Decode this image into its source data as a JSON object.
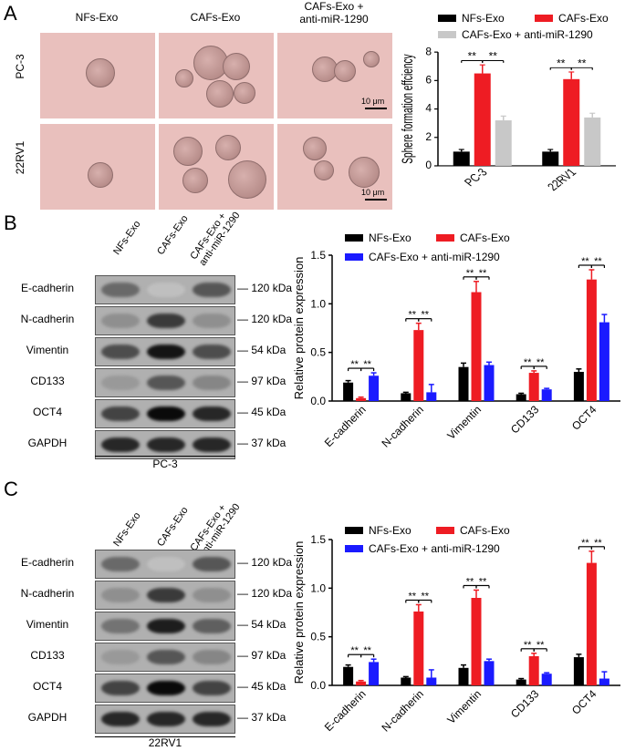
{
  "panels": {
    "A": "A",
    "B": "B",
    "C": "C"
  },
  "panelA": {
    "columns": [
      "NFs-Exo",
      "CAFs-Exo",
      "CAFs-Exo +\nanti-miR-1290"
    ],
    "rows": [
      "PC-3",
      "22RV1"
    ],
    "scale_label": "10 μm"
  },
  "panelB": {
    "columns": [
      "NFs-Exo",
      "CAFs-Exo",
      "CAFs-Exo +\nanti-miR-1290"
    ],
    "proteins": [
      "E-cadherin",
      "N-cadherin",
      "Vimentin",
      "CD133",
      "OCT4",
      "GAPDH"
    ],
    "sizes": [
      "120 kDa",
      "120 kDa",
      "54 kDa",
      "97 kDa",
      "45 kDa",
      "37 kDa"
    ],
    "cell_line": "PC-3"
  },
  "panelC": {
    "columns": [
      "NFs-Exo",
      "CAFs-Exo",
      "CAFs-Exo +\nanti-miR-1290"
    ],
    "proteins": [
      "E-cadherin",
      "N-cadherin",
      "Vimentin",
      "CD133",
      "OCT4",
      "GAPDH"
    ],
    "sizes": [
      "120 kDa",
      "120 kDa",
      "54 kDa",
      "97 kDa",
      "45 kDa",
      "37 kDa"
    ],
    "cell_line": "22RV1"
  },
  "colors": {
    "nfs": "#000000",
    "cafs": "#ee1c23",
    "anti_gray": "#c8c8c8",
    "anti_blue": "#1a1aff"
  },
  "chart_data": [
    {
      "type": "bar",
      "title": "",
      "xlabel": "",
      "ylabel": "Sphere formation effciency",
      "ylim": [
        0,
        8
      ],
      "yticks": [
        "0",
        "2",
        "4",
        "6",
        "8"
      ],
      "categories": [
        "PC-3",
        "22RV1"
      ],
      "series": [
        {
          "name": "NFs-Exo",
          "values": [
            1.0,
            1.0
          ],
          "errors": [
            0.15,
            0.15
          ]
        },
        {
          "name": "CAFs-Exo",
          "values": [
            6.5,
            6.1
          ],
          "errors": [
            0.6,
            0.5
          ]
        },
        {
          "name": "CAFs-Exo + anti-miR-1290",
          "values": [
            3.2,
            3.4
          ],
          "errors": [
            0.3,
            0.3
          ]
        }
      ],
      "significance": "**",
      "legend": "top"
    },
    {
      "type": "bar",
      "title": "",
      "xlabel": "",
      "ylabel": "Relative protein expression",
      "ylim": [
        0,
        1.5
      ],
      "yticks": [
        "0.0",
        "0.5",
        "1.0",
        "1.5"
      ],
      "categories": [
        "E-cadherin",
        "N-cadherin",
        "Vimentin",
        "CD133",
        "OCT4"
      ],
      "series": [
        {
          "name": "NFs-Exo",
          "values": [
            0.19,
            0.08,
            0.35,
            0.07,
            0.3
          ],
          "errors": [
            0.02,
            0.01,
            0.04,
            0.01,
            0.03
          ]
        },
        {
          "name": "CAFs-Exo",
          "values": [
            0.03,
            0.73,
            1.12,
            0.29,
            1.25
          ],
          "errors": [
            0.01,
            0.07,
            0.11,
            0.02,
            0.1
          ]
        },
        {
          "name": "CAFs-Exo + anti-miR-1290",
          "values": [
            0.26,
            0.09,
            0.37,
            0.12,
            0.81
          ],
          "errors": [
            0.03,
            0.08,
            0.03,
            0.01,
            0.08
          ]
        }
      ],
      "significance": "**",
      "legend": "top"
    },
    {
      "type": "bar",
      "title": "",
      "xlabel": "",
      "ylabel": "Relative protein expression",
      "ylim": [
        0,
        1.5
      ],
      "yticks": [
        "0.0",
        "0.5",
        "1.0",
        "1.5"
      ],
      "categories": [
        "E-cadherin",
        "N-cadherin",
        "Vimentin",
        "CD133",
        "OCT4"
      ],
      "series": [
        {
          "name": "NFs-Exo",
          "values": [
            0.19,
            0.08,
            0.18,
            0.06,
            0.29
          ],
          "errors": [
            0.02,
            0.01,
            0.03,
            0.01,
            0.03
          ]
        },
        {
          "name": "CAFs-Exo",
          "values": [
            0.04,
            0.76,
            0.9,
            0.3,
            1.26
          ],
          "errors": [
            0.01,
            0.07,
            0.08,
            0.03,
            0.12
          ]
        },
        {
          "name": "CAFs-Exo + anti-miR-1290",
          "values": [
            0.24,
            0.08,
            0.25,
            0.12,
            0.07
          ],
          "errors": [
            0.03,
            0.08,
            0.02,
            0.01,
            0.07
          ]
        }
      ],
      "significance": "**",
      "legend": "top"
    }
  ]
}
